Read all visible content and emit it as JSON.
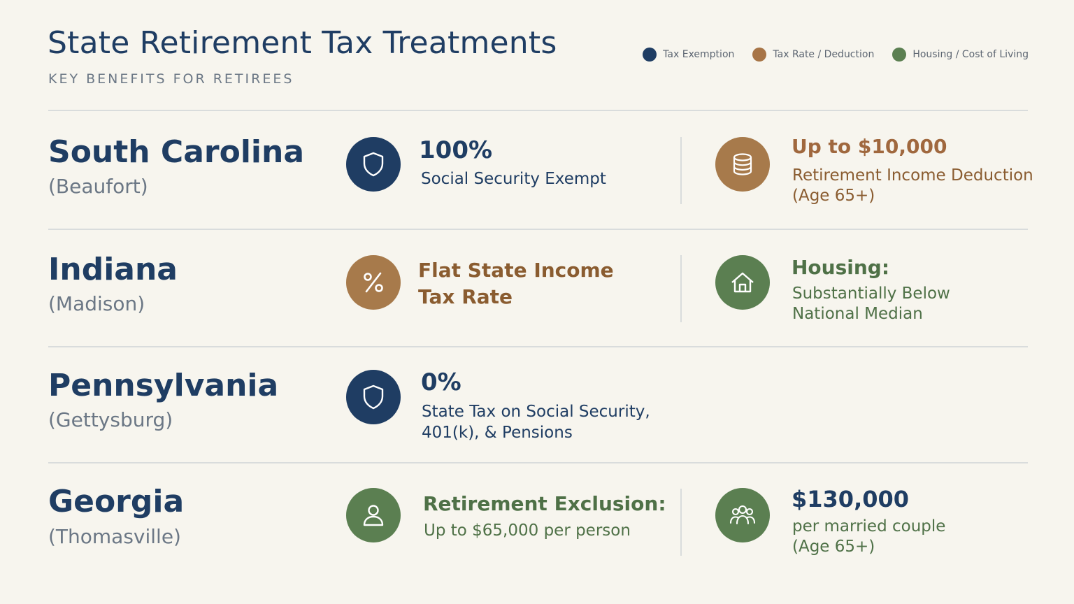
{
  "header": {
    "title": "State Retirement Tax Treatments",
    "subtitle": "KEY BENEFITS FOR RETIREES"
  },
  "legend": [
    {
      "label": "Tax Exemption",
      "color": "#1f3d63"
    },
    {
      "label": "Tax Rate / Deduction",
      "color": "#a77446"
    },
    {
      "label": "Housing / Cost of Living",
      "color": "#5b7f51"
    }
  ],
  "rows": [
    {
      "state": "South Carolina",
      "city": "(Beaufort)",
      "benefit1": {
        "icon": "shield-icon",
        "color": "#1f3d63",
        "headline": "100%",
        "line1": "Social Security Exempt",
        "line2": ""
      },
      "benefit2": {
        "icon": "coins-icon",
        "color": "#a77a4b",
        "headline": "Up to $10,000",
        "line1": "Retirement Income Deduction",
        "line2": "(Age 65+)"
      }
    },
    {
      "state": "Indiana",
      "city": "(Madison)",
      "benefit1": {
        "icon": "percent-icon",
        "color": "#a77a4b",
        "headline": "Flat State Income",
        "line1": "Tax Rate",
        "line2": ""
      },
      "benefit2": {
        "icon": "house-icon",
        "color": "#5b7f51",
        "headline": "Housing:",
        "line1": "Substantially Below",
        "line2": "National Median"
      }
    },
    {
      "state": "Pennsylvania",
      "city": "(Gettysburg)",
      "benefit1": {
        "icon": "shield-icon",
        "color": "#1f3d63",
        "headline": "0%",
        "line1": "State Tax on Social Security,",
        "line2": "401(k), & Pensions"
      }
    },
    {
      "state": "Georgia",
      "city": "(Thomasville)",
      "benefit1": {
        "icon": "person-icon",
        "color": "#5b7f51",
        "headline": "Retirement Exclusion:",
        "line1": "Up to $65,000 per person",
        "line2": ""
      },
      "benefit2": {
        "icon": "group-icon",
        "color": "#5b7f51",
        "headline": "$130,000",
        "line1": "per married couple",
        "line2": "(Age 65+)"
      }
    }
  ]
}
